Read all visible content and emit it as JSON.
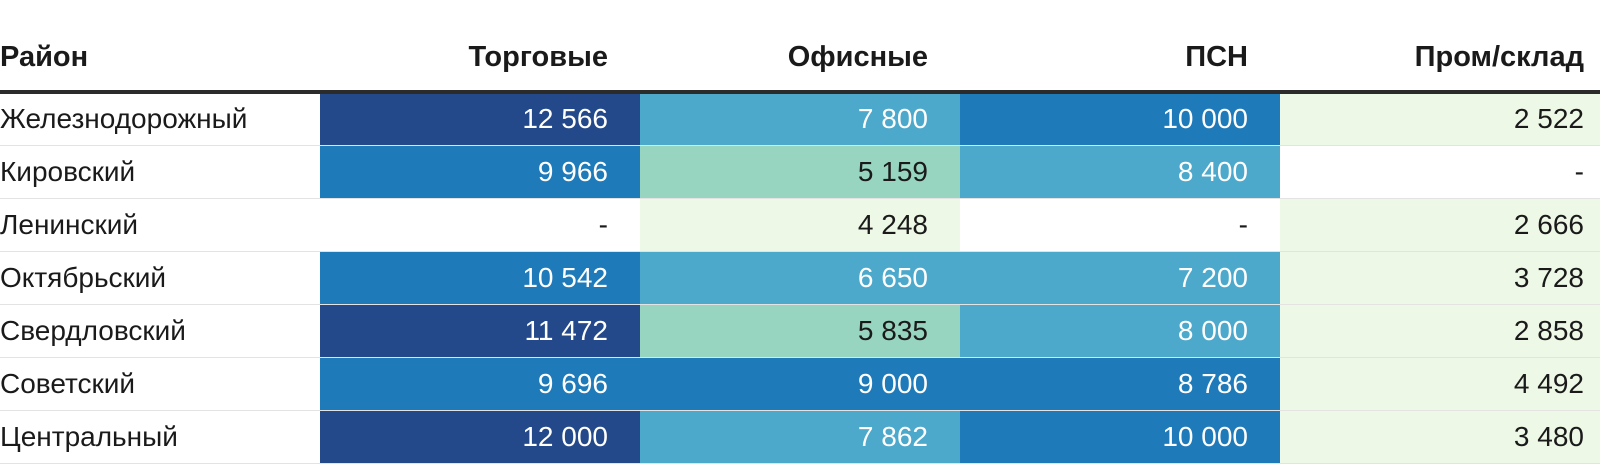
{
  "chart_data": {
    "type": "table",
    "columns": [
      "Район",
      "Торговые",
      "Офисные",
      "ПСН",
      "Пром/склад"
    ],
    "rows": [
      {
        "name": "Железнодорожный",
        "values": [
          12566,
          7800,
          10000,
          2522
        ],
        "display": [
          "12 566",
          "7 800",
          "10 000",
          "2 522"
        ]
      },
      {
        "name": "Кировский",
        "values": [
          9966,
          5159,
          8400,
          null
        ],
        "display": [
          "9 966",
          "5 159",
          "8 400",
          "-"
        ]
      },
      {
        "name": "Ленинский",
        "values": [
          null,
          4248,
          null,
          2666
        ],
        "display": [
          "-",
          "4 248",
          "-",
          "2 666"
        ]
      },
      {
        "name": "Октябрьский",
        "values": [
          10542,
          6650,
          7200,
          3728
        ],
        "display": [
          "10 542",
          "6 650",
          "7 200",
          "3 728"
        ]
      },
      {
        "name": "Свердловский",
        "values": [
          11472,
          5835,
          8000,
          2858
        ],
        "display": [
          "11 472",
          "5 835",
          "8 000",
          "2 858"
        ]
      },
      {
        "name": "Советский",
        "values": [
          9696,
          9000,
          8786,
          4492
        ],
        "display": [
          "9 696",
          "9 000",
          "8 786",
          "4 492"
        ]
      },
      {
        "name": "Центральный",
        "values": [
          12000,
          7862,
          10000,
          3480
        ],
        "display": [
          "12 000",
          "7 862",
          "10 000",
          "3 480"
        ]
      }
    ],
    "color_scale": {
      "empty": "#ffffff",
      "stops": [
        "#eef8e6",
        "#97d5c0",
        "#4ca9cb",
        "#1e7ab8",
        "#24498a"
      ],
      "dark_text": "#1a1a1a",
      "light_text": "#ffffff"
    }
  }
}
